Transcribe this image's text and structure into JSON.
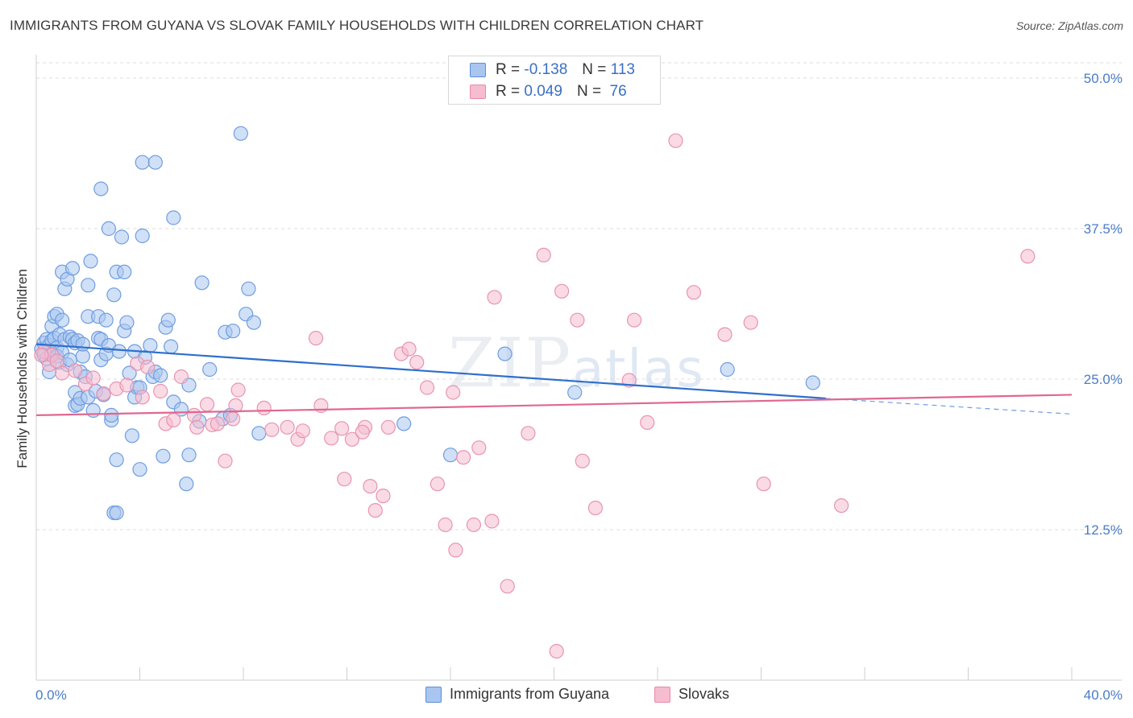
{
  "header": {
    "title": "IMMIGRANTS FROM GUYANA VS SLOVAK FAMILY HOUSEHOLDS WITH CHILDREN CORRELATION CHART",
    "source": "Source: ZipAtlas.com"
  },
  "watermark": {
    "zip": "ZIP",
    "atlas": "atlas"
  },
  "legend": {
    "r_label": "R =",
    "n_label": "N =",
    "series": [
      {
        "name": "Immigrants from Guyana",
        "r": "-0.138",
        "n": "113",
        "color": "#5b8fd9",
        "fill": "#a9c6f0",
        "line": "#2f6fcc"
      },
      {
        "name": "Slovaks",
        "r": "0.049",
        "n": "76",
        "color": "#e88aa8",
        "fill": "#f6bcd0",
        "line": "#e06792"
      }
    ]
  },
  "chart_data": {
    "type": "scatter",
    "title": "IMMIGRANTS FROM GUYANA VS SLOVAK FAMILY HOUSEHOLDS WITH CHILDREN CORRELATION CHART",
    "xlabel": "",
    "ylabel": "Family Households with Children",
    "xlim": [
      0,
      40
    ],
    "ylim": [
      0,
      50
    ],
    "x_tick_labels": [
      "0.0%",
      "40.0%"
    ],
    "y_ticks": [
      12.5,
      25.0,
      37.5,
      50.0
    ],
    "y_tick_labels": [
      "12.5%",
      "25.0%",
      "37.5%",
      "50.0%"
    ],
    "grid": "horizontal dashed",
    "legend_position": "top-center and bottom",
    "series": [
      {
        "name": "Immigrants from Guyana",
        "trend": {
          "x": [
            0,
            30.5
          ],
          "y": [
            27.9,
            23.4
          ],
          "dashed_extension_to": [
            40,
            22.1
          ]
        },
        "points": [
          [
            0.2,
            27.5
          ],
          [
            0.3,
            28.0
          ],
          [
            0.3,
            27.0
          ],
          [
            0.4,
            28.3
          ],
          [
            0.4,
            26.7
          ],
          [
            0.5,
            27.8
          ],
          [
            0.5,
            25.6
          ],
          [
            0.6,
            28.2
          ],
          [
            0.6,
            27.1
          ],
          [
            0.6,
            29.4
          ],
          [
            0.7,
            30.2
          ],
          [
            0.7,
            28.4
          ],
          [
            0.8,
            27.6
          ],
          [
            0.8,
            30.4
          ],
          [
            0.8,
            26.9
          ],
          [
            0.9,
            26.4
          ],
          [
            0.9,
            28.7
          ],
          [
            1.0,
            27.2
          ],
          [
            1.0,
            29.9
          ],
          [
            1.0,
            33.9
          ],
          [
            1.1,
            32.5
          ],
          [
            1.1,
            28.3
          ],
          [
            1.2,
            26.2
          ],
          [
            1.2,
            33.3
          ],
          [
            1.3,
            28.5
          ],
          [
            1.3,
            26.6
          ],
          [
            1.4,
            34.2
          ],
          [
            1.4,
            28.3
          ],
          [
            1.5,
            28.0
          ],
          [
            1.5,
            22.8
          ],
          [
            1.5,
            23.9
          ],
          [
            1.6,
            28.2
          ],
          [
            1.6,
            22.9
          ],
          [
            1.7,
            25.6
          ],
          [
            1.7,
            23.4
          ],
          [
            1.8,
            26.9
          ],
          [
            1.8,
            27.9
          ],
          [
            1.9,
            25.2
          ],
          [
            2.0,
            32.8
          ],
          [
            2.0,
            23.5
          ],
          [
            2.0,
            30.2
          ],
          [
            2.1,
            34.8
          ],
          [
            2.2,
            22.4
          ],
          [
            2.3,
            24.0
          ],
          [
            2.4,
            30.2
          ],
          [
            2.4,
            28.4
          ],
          [
            2.5,
            40.8
          ],
          [
            2.5,
            26.6
          ],
          [
            2.5,
            28.3
          ],
          [
            2.6,
            23.7
          ],
          [
            2.7,
            27.1
          ],
          [
            2.7,
            29.9
          ],
          [
            2.8,
            37.5
          ],
          [
            2.8,
            27.8
          ],
          [
            2.9,
            21.6
          ],
          [
            2.9,
            22.0
          ],
          [
            3.0,
            13.9
          ],
          [
            3.0,
            32.0
          ],
          [
            3.1,
            33.9
          ],
          [
            3.1,
            13.9
          ],
          [
            3.1,
            18.3
          ],
          [
            3.2,
            27.3
          ],
          [
            3.3,
            36.8
          ],
          [
            3.4,
            33.9
          ],
          [
            3.4,
            29.0
          ],
          [
            3.5,
            29.7
          ],
          [
            3.6,
            25.5
          ],
          [
            3.7,
            20.3
          ],
          [
            3.8,
            27.3
          ],
          [
            3.8,
            23.5
          ],
          [
            3.9,
            24.3
          ],
          [
            4.0,
            17.5
          ],
          [
            4.0,
            24.3
          ],
          [
            4.1,
            43.0
          ],
          [
            4.1,
            36.9
          ],
          [
            4.2,
            26.8
          ],
          [
            4.4,
            27.8
          ],
          [
            4.5,
            25.2
          ],
          [
            4.6,
            43.0
          ],
          [
            4.6,
            25.6
          ],
          [
            4.8,
            25.3
          ],
          [
            4.9,
            18.6
          ],
          [
            5.0,
            29.3
          ],
          [
            5.1,
            29.9
          ],
          [
            5.2,
            27.7
          ],
          [
            5.3,
            38.4
          ],
          [
            5.3,
            23.1
          ],
          [
            5.6,
            22.5
          ],
          [
            5.8,
            16.3
          ],
          [
            5.9,
            24.5
          ],
          [
            5.9,
            18.7
          ],
          [
            6.3,
            21.5
          ],
          [
            6.4,
            33.0
          ],
          [
            6.7,
            25.8
          ],
          [
            7.2,
            21.7
          ],
          [
            7.3,
            28.9
          ],
          [
            7.5,
            22.0
          ],
          [
            7.6,
            29.0
          ],
          [
            7.9,
            45.4
          ],
          [
            8.1,
            30.4
          ],
          [
            8.2,
            32.5
          ],
          [
            8.4,
            29.7
          ],
          [
            8.6,
            20.5
          ],
          [
            14.2,
            21.3
          ],
          [
            16.0,
            18.7
          ],
          [
            18.1,
            27.1
          ],
          [
            20.8,
            23.9
          ],
          [
            26.7,
            25.8
          ],
          [
            30.0,
            24.7
          ]
        ]
      },
      {
        "name": "Slovaks",
        "trend": {
          "x": [
            0,
            40
          ],
          "y": [
            22.0,
            23.7
          ]
        },
        "points": [
          [
            0.3,
            27.3
          ],
          [
            0.5,
            26.2
          ],
          [
            0.6,
            27.0
          ],
          [
            0.8,
            26.5
          ],
          [
            1.0,
            25.5
          ],
          [
            1.5,
            25.7
          ],
          [
            1.9,
            24.6
          ],
          [
            2.2,
            25.1
          ],
          [
            2.6,
            23.8
          ],
          [
            3.1,
            24.2
          ],
          [
            3.5,
            24.5
          ],
          [
            3.9,
            26.3
          ],
          [
            4.1,
            23.5
          ],
          [
            4.3,
            26.0
          ],
          [
            4.8,
            24.0
          ],
          [
            5.0,
            21.3
          ],
          [
            5.3,
            21.6
          ],
          [
            5.6,
            25.2
          ],
          [
            6.1,
            22.0
          ],
          [
            6.2,
            21.0
          ],
          [
            6.6,
            22.9
          ],
          [
            6.8,
            21.2
          ],
          [
            7.0,
            21.3
          ],
          [
            7.3,
            18.2
          ],
          [
            7.6,
            21.7
          ],
          [
            7.7,
            22.8
          ],
          [
            7.8,
            24.1
          ],
          [
            8.8,
            22.6
          ],
          [
            9.1,
            20.8
          ],
          [
            9.7,
            21.0
          ],
          [
            10.1,
            20.0
          ],
          [
            10.3,
            20.7
          ],
          [
            10.8,
            28.4
          ],
          [
            11.0,
            22.8
          ],
          [
            11.4,
            20.1
          ],
          [
            11.8,
            20.9
          ],
          [
            11.9,
            16.7
          ],
          [
            12.2,
            20.0
          ],
          [
            12.7,
            21.0
          ],
          [
            12.9,
            16.1
          ],
          [
            13.1,
            14.1
          ],
          [
            13.4,
            15.3
          ],
          [
            13.6,
            21.0
          ],
          [
            14.1,
            27.1
          ],
          [
            14.4,
            27.5
          ],
          [
            14.7,
            26.4
          ],
          [
            15.1,
            24.3
          ],
          [
            15.5,
            16.3
          ],
          [
            15.8,
            12.9
          ],
          [
            16.1,
            23.9
          ],
          [
            16.2,
            10.8
          ],
          [
            16.5,
            18.5
          ],
          [
            16.9,
            12.9
          ],
          [
            17.1,
            19.3
          ],
          [
            17.6,
            13.2
          ],
          [
            17.7,
            31.8
          ],
          [
            18.2,
            7.8
          ],
          [
            19.0,
            20.5
          ],
          [
            19.6,
            35.3
          ],
          [
            20.1,
            2.4
          ],
          [
            20.3,
            32.3
          ],
          [
            20.9,
            29.9
          ],
          [
            21.1,
            18.2
          ],
          [
            21.6,
            14.3
          ],
          [
            22.9,
            24.9
          ],
          [
            23.1,
            29.9
          ],
          [
            23.6,
            21.4
          ],
          [
            24.7,
            44.8
          ],
          [
            25.4,
            32.2
          ],
          [
            26.6,
            28.7
          ],
          [
            27.6,
            29.7
          ],
          [
            28.1,
            16.3
          ],
          [
            31.1,
            14.5
          ],
          [
            38.3,
            35.2
          ],
          [
            0.2,
            27.0
          ],
          [
            12.6,
            20.6
          ]
        ]
      }
    ]
  }
}
